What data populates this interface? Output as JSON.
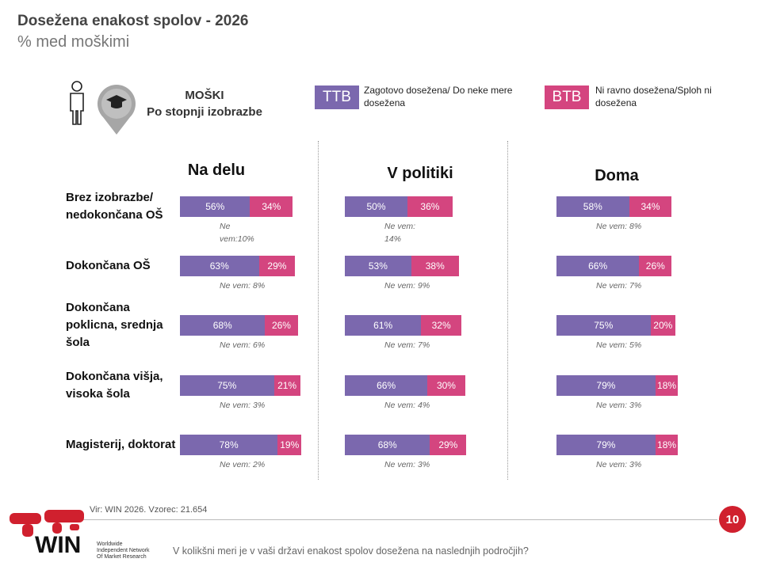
{
  "header": {
    "title": "Dosežena enakost spolov - 2026",
    "subtitle": "% med moškimi"
  },
  "legend": {
    "heading": [
      "MOŠKI",
      "Po stopnji izobrazbe"
    ]
  },
  "chart_data": [
    {
      "type": "bar",
      "orientation": "horizontal",
      "stacked": true,
      "title": "Na delu",
      "categories": [
        "Brez izobrazbe/ nedokončana OŠ",
        "Dokončana OŠ",
        "Dokončana poklicna, srednja šola",
        "Dokončana višja, visoka šola",
        "Magisterij, doktorat"
      ],
      "xlim": [
        0,
        100
      ],
      "series": [
        {
          "name": "TTB",
          "description": "Zagotovo dosežena/ Do neke mere dosežena",
          "color": "#7b68ae",
          "values": [
            56,
            63,
            68,
            75,
            78
          ],
          "value_labels": [
            "56%",
            "63%",
            "68%",
            "75%",
            "78%"
          ]
        },
        {
          "name": "BTB",
          "description": "Ni ravno dosežena/Sploh ni dosežena",
          "color": "#d4457f",
          "values": [
            34,
            29,
            26,
            21,
            19
          ],
          "value_labels": [
            "34%",
            "29%",
            "26%",
            "21%",
            "19%"
          ]
        }
      ],
      "annotations": [
        "Ne vem:10%",
        "Ne vem: 8%",
        "Ne vem: 6%",
        "Ne vem: 3%",
        "Ne vem: 2%"
      ]
    },
    {
      "type": "bar",
      "orientation": "horizontal",
      "stacked": true,
      "title": "V politiki",
      "xlim": [
        0,
        100
      ],
      "series": [
        {
          "name": "TTB",
          "color": "#7b68ae",
          "values": [
            50,
            53,
            61,
            66,
            68
          ],
          "value_labels": [
            "50%",
            "53%",
            "61%",
            "66%",
            "68%"
          ]
        },
        {
          "name": "BTB",
          "color": "#d4457f",
          "values": [
            36,
            38,
            32,
            30,
            29
          ],
          "value_labels": [
            "36%",
            "38%",
            "32%",
            "30%",
            "29%"
          ]
        }
      ],
      "annotations": [
        "Ne vem: 14%",
        "Ne vem: 9%",
        "Ne vem: 7%",
        "Ne vem: 4%",
        "Ne vem: 3%"
      ]
    },
    {
      "type": "bar",
      "orientation": "horizontal",
      "stacked": true,
      "title": "Doma",
      "xlim": [
        0,
        100
      ],
      "series": [
        {
          "name": "TTB",
          "color": "#7b68ae",
          "values": [
            58,
            66,
            75,
            79,
            79
          ],
          "value_labels": [
            "58%",
            "66%",
            "75%",
            "79%",
            "79%"
          ]
        },
        {
          "name": "BTB",
          "color": "#d4457f",
          "values": [
            34,
            26,
            20,
            18,
            18
          ],
          "value_labels": [
            "34%",
            "26%",
            "20%",
            "18%",
            "18%"
          ]
        }
      ],
      "annotations": [
        "Ne vem: 8%",
        "Ne vem: 7%",
        "Ne vem: 5%",
        "Ne vem: 3%",
        "Ne vem: 3%"
      ]
    }
  ],
  "footer": {
    "source": "Vir: WIN 2026.  Vzorec: 21.654",
    "page": "10",
    "question": "V kolikšni meri je v vaši državi enakost spolov dosežena na naslednjih področjih?",
    "logo": {
      "name": "WIN",
      "tagline": [
        "Worldwide",
        "Independent Network",
        "Of Market Research"
      ]
    }
  }
}
